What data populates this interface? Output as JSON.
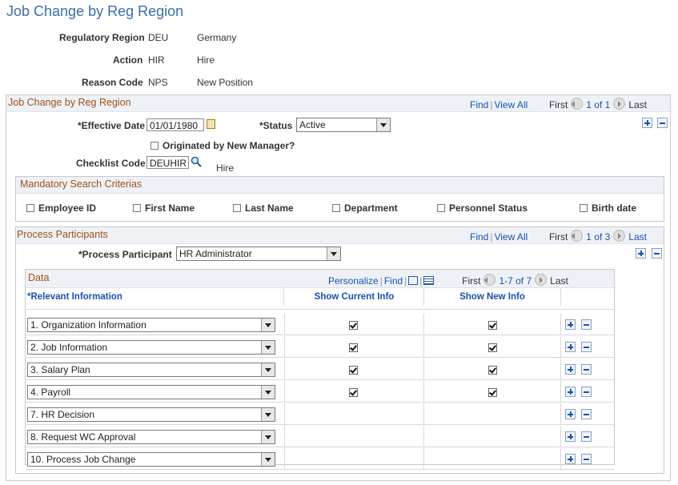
{
  "page_title": "Job Change by Reg Region",
  "header": {
    "regulatory_region": {
      "label": "Regulatory Region",
      "code": "DEU",
      "desc": "Germany"
    },
    "action": {
      "label": "Action",
      "code": "HIR",
      "desc": "Hire"
    },
    "reason_code": {
      "label": "Reason Code",
      "code": "NPS",
      "desc": "New Position"
    }
  },
  "job_change": {
    "title": "Job Change by Reg Region",
    "nav": {
      "find": "Find",
      "view_all": "View All",
      "first": "First",
      "pos": "1 of 1",
      "last": "Last"
    },
    "effective_date": {
      "label": "*Effective Date",
      "value": "01/01/1980"
    },
    "status": {
      "label": "*Status",
      "value": "Active"
    },
    "originated": {
      "label": "Originated by New Manager?"
    },
    "checklist": {
      "label": "Checklist Code",
      "value": "DEUHIR",
      "desc": "Hire"
    }
  },
  "mandatory": {
    "title": "Mandatory Search Criterias",
    "items": [
      "Employee ID",
      "First Name",
      "Last Name",
      "Department",
      "Personnel Status",
      "Birth date"
    ]
  },
  "participants": {
    "title": "Process Participants",
    "nav": {
      "find": "Find",
      "view_all": "View All",
      "first": "First",
      "pos": "1 of 3",
      "last": "Last"
    },
    "participant": {
      "label": "*Process Participant",
      "value": "HR Administrator"
    }
  },
  "data_grid": {
    "title": "Data",
    "nav": {
      "personalize": "Personalize",
      "find": "Find",
      "first": "First",
      "pos": "1-7 of 7",
      "last": "Last"
    },
    "columns": [
      "*Relevant Information",
      "Show Current Info",
      "Show New Info"
    ],
    "rows": [
      {
        "info": "1. Organization Information",
        "current": true,
        "new": true
      },
      {
        "info": "2. Job Information",
        "current": true,
        "new": true
      },
      {
        "info": "3. Salary Plan",
        "current": true,
        "new": true
      },
      {
        "info": "4. Payroll",
        "current": true,
        "new": true
      },
      {
        "info": "7. HR Decision",
        "current": false,
        "new": false
      },
      {
        "info": "8. Request WC Approval",
        "current": false,
        "new": false
      },
      {
        "info": "10. Process Job Change",
        "current": false,
        "new": false
      }
    ]
  }
}
